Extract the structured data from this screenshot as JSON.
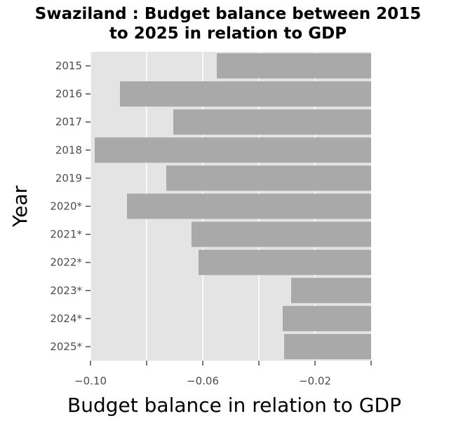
{
  "chart_data": {
    "type": "bar",
    "orientation": "horizontal",
    "title": "Swaziland : Budget balance between 2015 to 2025 in relation to GDP",
    "title_lines": [
      "Swaziland : Budget balance between 2015",
      "to 2025 in relation to GDP"
    ],
    "xlabel": "Budget balance in relation to GDP",
    "ylabel": "Year",
    "categories": [
      "2015",
      "2016",
      "2017",
      "2018",
      "2019",
      "2020*",
      "2021*",
      "2022*",
      "2023*",
      "2024*",
      "2025*"
    ],
    "values": [
      -0.055,
      -0.0895,
      -0.0705,
      -0.0985,
      -0.073,
      -0.087,
      -0.064,
      -0.0615,
      -0.0285,
      -0.0315,
      -0.031
    ],
    "xlim": [
      -0.1,
      0.0
    ],
    "xticks": [
      -0.1,
      -0.08,
      -0.06,
      -0.04,
      -0.02,
      0.0
    ],
    "xtick_labels": [
      "−0.10",
      "",
      "−0.06",
      "",
      "−0.02",
      ""
    ],
    "grid": true,
    "legend": "none",
    "colors": {
      "bar": "#a9a9a9",
      "panel": "#e4e4e4",
      "grid": "#ffffff",
      "tick": "#4d4d4d"
    }
  }
}
